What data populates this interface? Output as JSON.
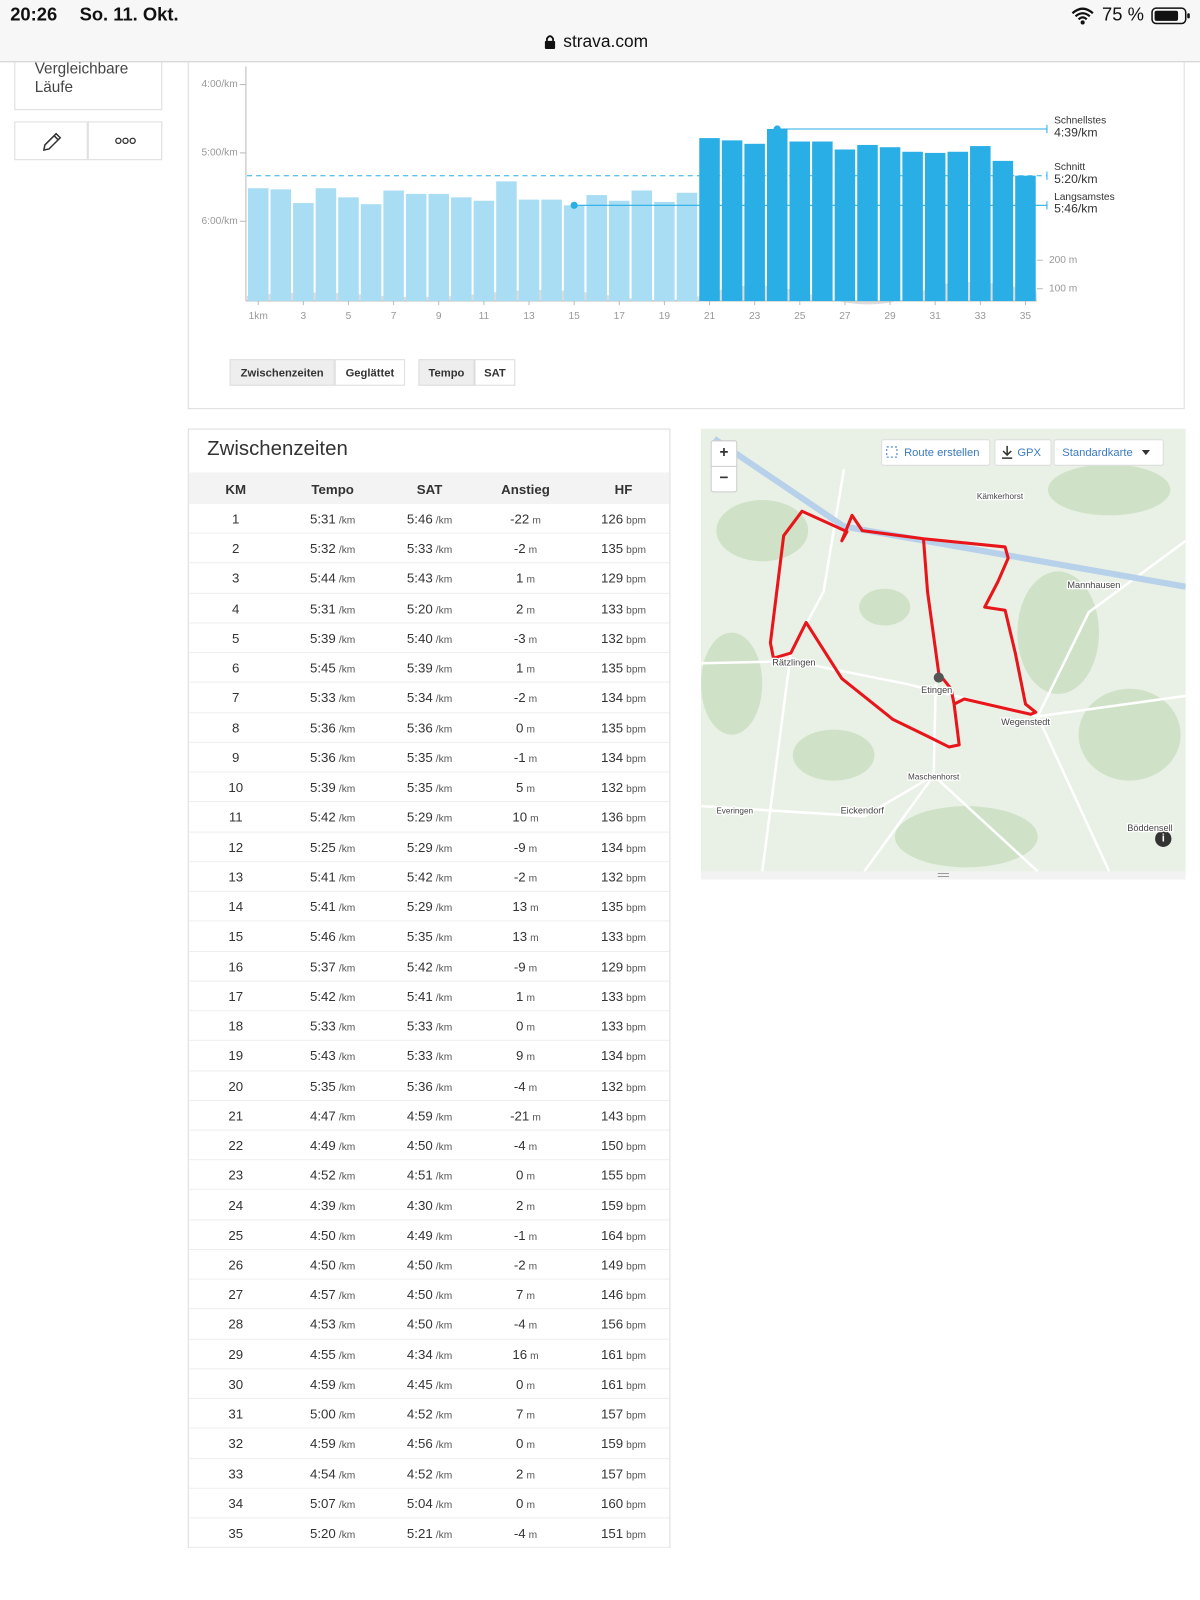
{
  "status_bar": {
    "time": "20:26",
    "date": "So. 11. Okt.",
    "battery": "75 %"
  },
  "browser": {
    "url": "strava.com"
  },
  "sidebar": {
    "compare_label": "Vergleichbare Läufe"
  },
  "chart_data": {
    "type": "bar",
    "categories": [
      "1km",
      null,
      "3",
      null,
      "5",
      null,
      "7",
      null,
      "9",
      null,
      "11",
      null,
      "13",
      null,
      "15",
      null,
      "17",
      null,
      "19",
      null,
      "21",
      null,
      "23",
      null,
      "25",
      null,
      "27",
      null,
      "29",
      null,
      "31",
      null,
      "33",
      null,
      "35"
    ],
    "values": [
      331,
      332,
      344,
      331,
      339,
      345,
      333,
      336,
      336,
      339,
      342,
      325,
      341,
      341,
      346,
      337,
      342,
      333,
      343,
      335,
      287,
      289,
      292,
      279,
      290,
      290,
      297,
      293,
      295,
      299,
      300,
      299,
      294,
      307,
      320
    ],
    "ylim": [
      430,
      224
    ],
    "yticks": [
      {
        "value": 240,
        "label": "4:00/km"
      },
      {
        "value": 300,
        "label": "5:00/km"
      },
      {
        "value": 360,
        "label": "6:00/km"
      }
    ],
    "y2lim": [
      57,
      879
    ],
    "y2ticks": [
      {
        "value": 200,
        "label": "200 m"
      },
      {
        "value": 100,
        "label": "100 m"
      }
    ],
    "color": "#a9ddf3",
    "fast_color": "#2aaee6",
    "annotations": [
      {
        "label": "Schnellstes",
        "value": 279,
        "value_label": "4:39/km"
      },
      {
        "label": "Schnitt",
        "value": 320,
        "value_label": "5:20/km",
        "dashed": true
      },
      {
        "label": "Langsamstes",
        "value": 346,
        "value_label": "5:46/km"
      }
    ]
  },
  "chart_controls": {
    "split_buttons": [
      "Zwischenzeiten",
      "Geglättet"
    ],
    "metric_buttons": [
      "Tempo",
      "SAT"
    ]
  },
  "splits": {
    "title": "Zwischenzeiten",
    "columns": [
      "KM",
      "Tempo",
      "SAT",
      "Anstieg",
      "HF"
    ],
    "units": [
      "/km",
      "/km",
      "m",
      "bpm"
    ],
    "rows": [
      [
        1,
        "5:31",
        "5:46",
        -22,
        126
      ],
      [
        2,
        "5:32",
        "5:33",
        -2,
        135
      ],
      [
        3,
        "5:44",
        "5:43",
        1,
        129
      ],
      [
        4,
        "5:31",
        "5:20",
        2,
        133
      ],
      [
        5,
        "5:39",
        "5:40",
        -3,
        132
      ],
      [
        6,
        "5:45",
        "5:39",
        1,
        135
      ],
      [
        7,
        "5:33",
        "5:34",
        -2,
        134
      ],
      [
        8,
        "5:36",
        "5:36",
        0,
        135
      ],
      [
        9,
        "5:36",
        "5:35",
        -1,
        134
      ],
      [
        10,
        "5:39",
        "5:35",
        5,
        132
      ],
      [
        11,
        "5:42",
        "5:29",
        10,
        136
      ],
      [
        12,
        "5:25",
        "5:29",
        -9,
        134
      ],
      [
        13,
        "5:41",
        "5:42",
        -2,
        132
      ],
      [
        14,
        "5:41",
        "5:29",
        13,
        135
      ],
      [
        15,
        "5:46",
        "5:35",
        13,
        133
      ],
      [
        16,
        "5:37",
        "5:42",
        -9,
        129
      ],
      [
        17,
        "5:42",
        "5:41",
        1,
        133
      ],
      [
        18,
        "5:33",
        "5:33",
        0,
        133
      ],
      [
        19,
        "5:43",
        "5:33",
        9,
        134
      ],
      [
        20,
        "5:35",
        "5:36",
        -4,
        132
      ],
      [
        21,
        "4:47",
        "4:59",
        -21,
        143
      ],
      [
        22,
        "4:49",
        "4:50",
        -4,
        150
      ],
      [
        23,
        "4:52",
        "4:51",
        0,
        155
      ],
      [
        24,
        "4:39",
        "4:30",
        2,
        159
      ],
      [
        25,
        "4:50",
        "4:49",
        -1,
        164
      ],
      [
        26,
        "4:50",
        "4:50",
        -2,
        149
      ],
      [
        27,
        "4:57",
        "4:50",
        7,
        146
      ],
      [
        28,
        "4:53",
        "4:50",
        -4,
        156
      ],
      [
        29,
        "4:55",
        "4:34",
        16,
        161
      ],
      [
        30,
        "4:59",
        "4:45",
        0,
        161
      ],
      [
        31,
        "5:00",
        "4:52",
        7,
        157
      ],
      [
        32,
        "4:59",
        "4:56",
        0,
        159
      ],
      [
        33,
        "4:54",
        "4:52",
        2,
        157
      ],
      [
        34,
        "5:07",
        "5:04",
        0,
        160
      ],
      [
        35,
        "5:20",
        "5:21",
        -4,
        151
      ]
    ]
  },
  "map": {
    "zoom_in": "+",
    "zoom_out": "−",
    "route_button": "Route erstellen",
    "gpx_button": "GPX",
    "layer_button": "Standardkarte",
    "places": [
      "Kämkerhorst",
      "Mannhausen",
      "Rätzlingen",
      "Etingen",
      "Wegenstedt",
      "Maschenhorst",
      "Everingen",
      "Eickendorf",
      "Böddensell"
    ]
  }
}
